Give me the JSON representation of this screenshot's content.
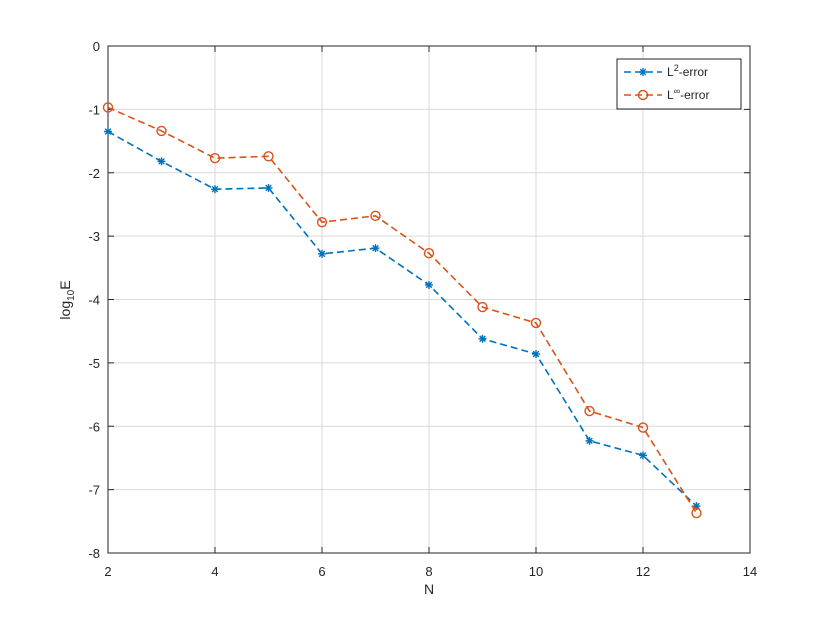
{
  "chart_data": {
    "type": "line",
    "xlabel": "N",
    "ylabel_main": "log",
    "ylabel_sub": "10",
    "ylabel_tail": "E",
    "xlim": [
      2,
      14
    ],
    "ylim": [
      -8,
      0
    ],
    "xticks": [
      2,
      4,
      6,
      8,
      10,
      12,
      14
    ],
    "yticks": [
      0,
      -1,
      -2,
      -3,
      -4,
      -5,
      -6,
      -7,
      -8
    ],
    "grid": true,
    "legend_position": "top-right",
    "x": [
      2,
      3,
      4,
      5,
      6,
      7,
      8,
      9,
      10,
      11,
      12,
      13
    ],
    "series": [
      {
        "legend_main": "L",
        "legend_sup": "2",
        "legend_tail": "-error",
        "color": "#0072BD",
        "marker": "asterisk",
        "values": [
          -1.35,
          -1.82,
          -2.26,
          -2.24,
          -3.28,
          -3.19,
          -3.77,
          -4.62,
          -4.86,
          -6.23,
          -6.46,
          -7.26
        ]
      },
      {
        "legend_main": "L",
        "legend_sup": "∞",
        "legend_tail": "-error",
        "color": "#D95319",
        "marker": "circle",
        "values": [
          -0.97,
          -1.34,
          -1.77,
          -1.74,
          -2.78,
          -2.68,
          -3.27,
          -4.12,
          -4.37,
          -5.76,
          -6.02,
          -7.37
        ]
      }
    ]
  }
}
